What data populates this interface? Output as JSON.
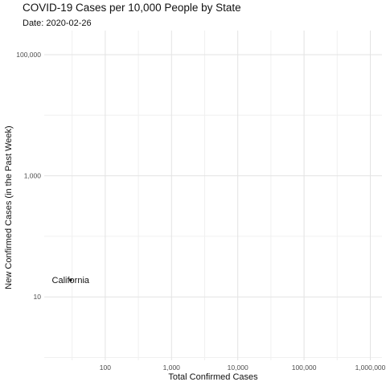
{
  "chart_data": {
    "type": "scatter",
    "title": "COVID-19 Cases per 10,000 People by State",
    "subtitle": "Date: 2020-02-26",
    "xlabel": "Total Confirmed Cases",
    "ylabel": "New Confirmed Cases (in the Past Week)",
    "x_scale": "log",
    "y_scale": "log",
    "xlim": [
      12,
      1500000
    ],
    "ylim": [
      0.9,
      250000
    ],
    "x_ticks": [
      100,
      1000,
      10000,
      100000,
      1000000
    ],
    "x_tick_labels": [
      "100",
      "1,000",
      "10,000",
      "100,000",
      "1,000,000"
    ],
    "y_ticks": [
      10,
      1000,
      100000
    ],
    "y_tick_labels": [
      "10",
      "1,000",
      "100,000"
    ],
    "grid": true,
    "points": [
      {
        "label": "California",
        "x": 30,
        "y": 19
      }
    ],
    "point_color": "#222222"
  }
}
